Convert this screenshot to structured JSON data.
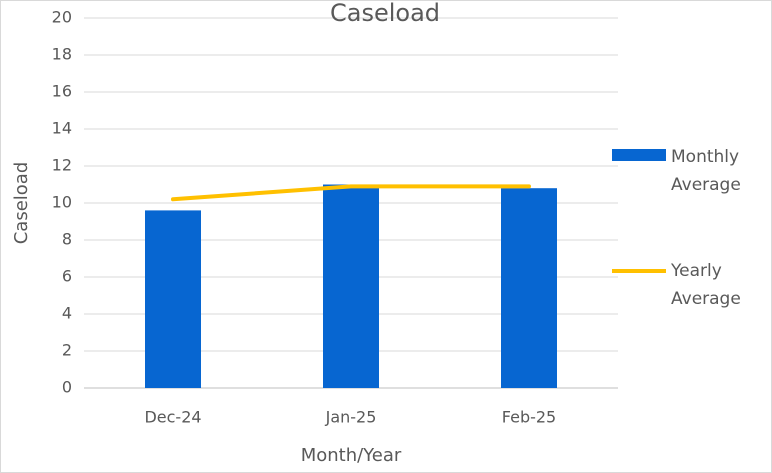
{
  "chart_data": {
    "type": "bar-line",
    "title": "Caseload",
    "x_label": "Month/Year",
    "y_label": "Caseload",
    "categories": [
      "Dec-24",
      "Jan-25",
      "Feb-25"
    ],
    "series": [
      {
        "name": "Monthly Average",
        "type": "bar",
        "color": "#0766d1",
        "values": [
          9.6,
          11.0,
          10.8
        ]
      },
      {
        "name": "Yearly Average",
        "type": "line",
        "color": "#ffc000",
        "values": [
          10.2,
          10.9,
          10.9
        ]
      }
    ],
    "ylim": [
      0,
      20
    ],
    "yticks": [
      0,
      2,
      4,
      6,
      8,
      10,
      12,
      14,
      16,
      18,
      20
    ],
    "grid": true,
    "legend": "right"
  }
}
